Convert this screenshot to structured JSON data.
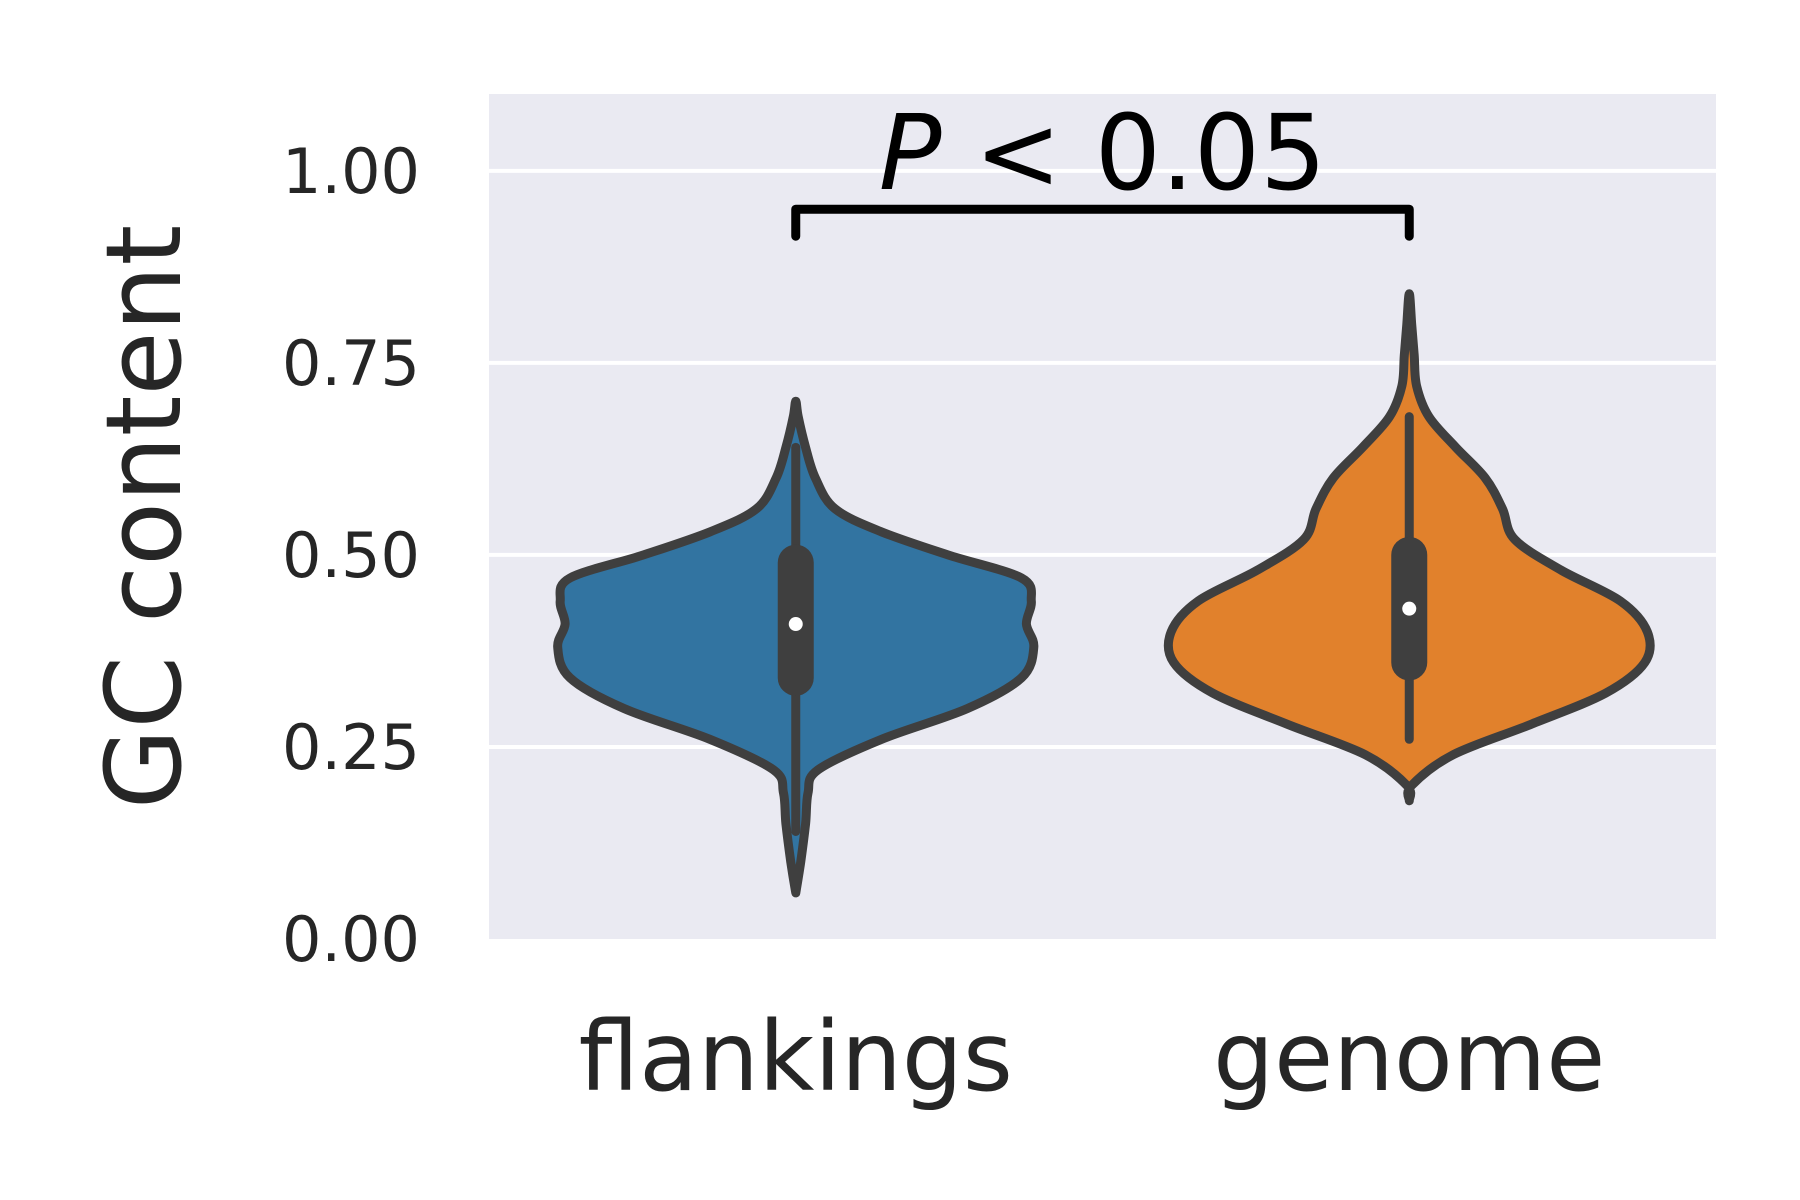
{
  "chart_data": {
    "type": "violin",
    "title": "",
    "xlabel": "",
    "ylabel": "GC content",
    "ylim": [
      0,
      1.1
    ],
    "yticks": [
      0.0,
      0.25,
      0.5,
      0.75,
      1.0
    ],
    "ytick_labels": [
      "0.00",
      "0.25",
      "0.50",
      "0.75",
      "1.00"
    ],
    "grid": true,
    "categories": [
      "flankings",
      "genome"
    ],
    "series": [
      {
        "color": "#3274a1",
        "min": 0.06,
        "max": 0.7,
        "whisker_low": 0.14,
        "whisker_high": 0.64,
        "q1": 0.34,
        "q3": 0.49,
        "median": 0.41,
        "density": [
          [
            0.06,
            0.0
          ],
          [
            0.1,
            0.02
          ],
          [
            0.15,
            0.04
          ],
          [
            0.19,
            0.05
          ],
          [
            0.22,
            0.09
          ],
          [
            0.26,
            0.35
          ],
          [
            0.3,
            0.7
          ],
          [
            0.34,
            0.92
          ],
          [
            0.38,
            0.97
          ],
          [
            0.41,
            0.94
          ],
          [
            0.44,
            0.96
          ],
          [
            0.47,
            0.92
          ],
          [
            0.5,
            0.62
          ],
          [
            0.53,
            0.35
          ],
          [
            0.56,
            0.16
          ],
          [
            0.6,
            0.08
          ],
          [
            0.64,
            0.04
          ],
          [
            0.68,
            0.01
          ],
          [
            0.7,
            0.0
          ]
        ]
      },
      {
        "color": "#e1812c",
        "min": 0.18,
        "max": 0.84,
        "whisker_low": 0.26,
        "whisker_high": 0.68,
        "q1": 0.36,
        "q3": 0.5,
        "median": 0.43,
        "density": [
          [
            0.18,
            0.0
          ],
          [
            0.2,
            0.01
          ],
          [
            0.24,
            0.18
          ],
          [
            0.28,
            0.5
          ],
          [
            0.32,
            0.8
          ],
          [
            0.36,
            0.96
          ],
          [
            0.4,
            0.97
          ],
          [
            0.44,
            0.86
          ],
          [
            0.48,
            0.62
          ],
          [
            0.52,
            0.43
          ],
          [
            0.56,
            0.38
          ],
          [
            0.6,
            0.31
          ],
          [
            0.64,
            0.19
          ],
          [
            0.68,
            0.08
          ],
          [
            0.72,
            0.03
          ],
          [
            0.76,
            0.02
          ],
          [
            0.8,
            0.01
          ],
          [
            0.84,
            0.0
          ]
        ]
      }
    ],
    "annotations": [
      {
        "text_italic": "P",
        "text": " < 0.05",
        "between": [
          "flankings",
          "genome"
        ],
        "level": 0.95
      }
    ]
  }
}
